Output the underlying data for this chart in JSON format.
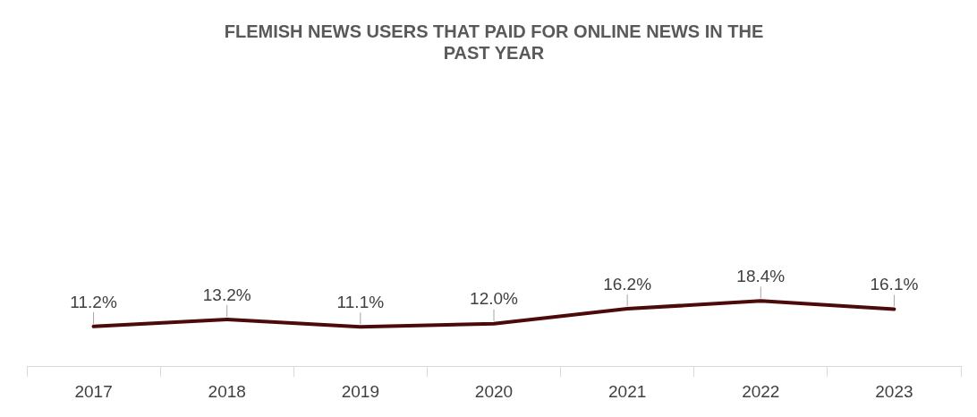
{
  "chart_data": {
    "type": "line",
    "title": "FLEMISH NEWS USERS THAT PAID FOR ONLINE NEWS IN THE PAST YEAR",
    "categories": [
      "2017",
      "2018",
      "2019",
      "2020",
      "2021",
      "2022",
      "2023"
    ],
    "series": [
      {
        "color": "#4d0a0a",
        "values": [
          11.2,
          13.2,
          11.1,
          12.0,
          16.2,
          18.4,
          16.1
        ],
        "value_labels": [
          "11.2%",
          "13.2%",
          "11.1%",
          "12.0%",
          "16.2%",
          "18.4%",
          "16.1%"
        ]
      }
    ],
    "tick_labels": "x",
    "grid": false,
    "legend": false,
    "marker": "none",
    "line_style": "solid"
  }
}
